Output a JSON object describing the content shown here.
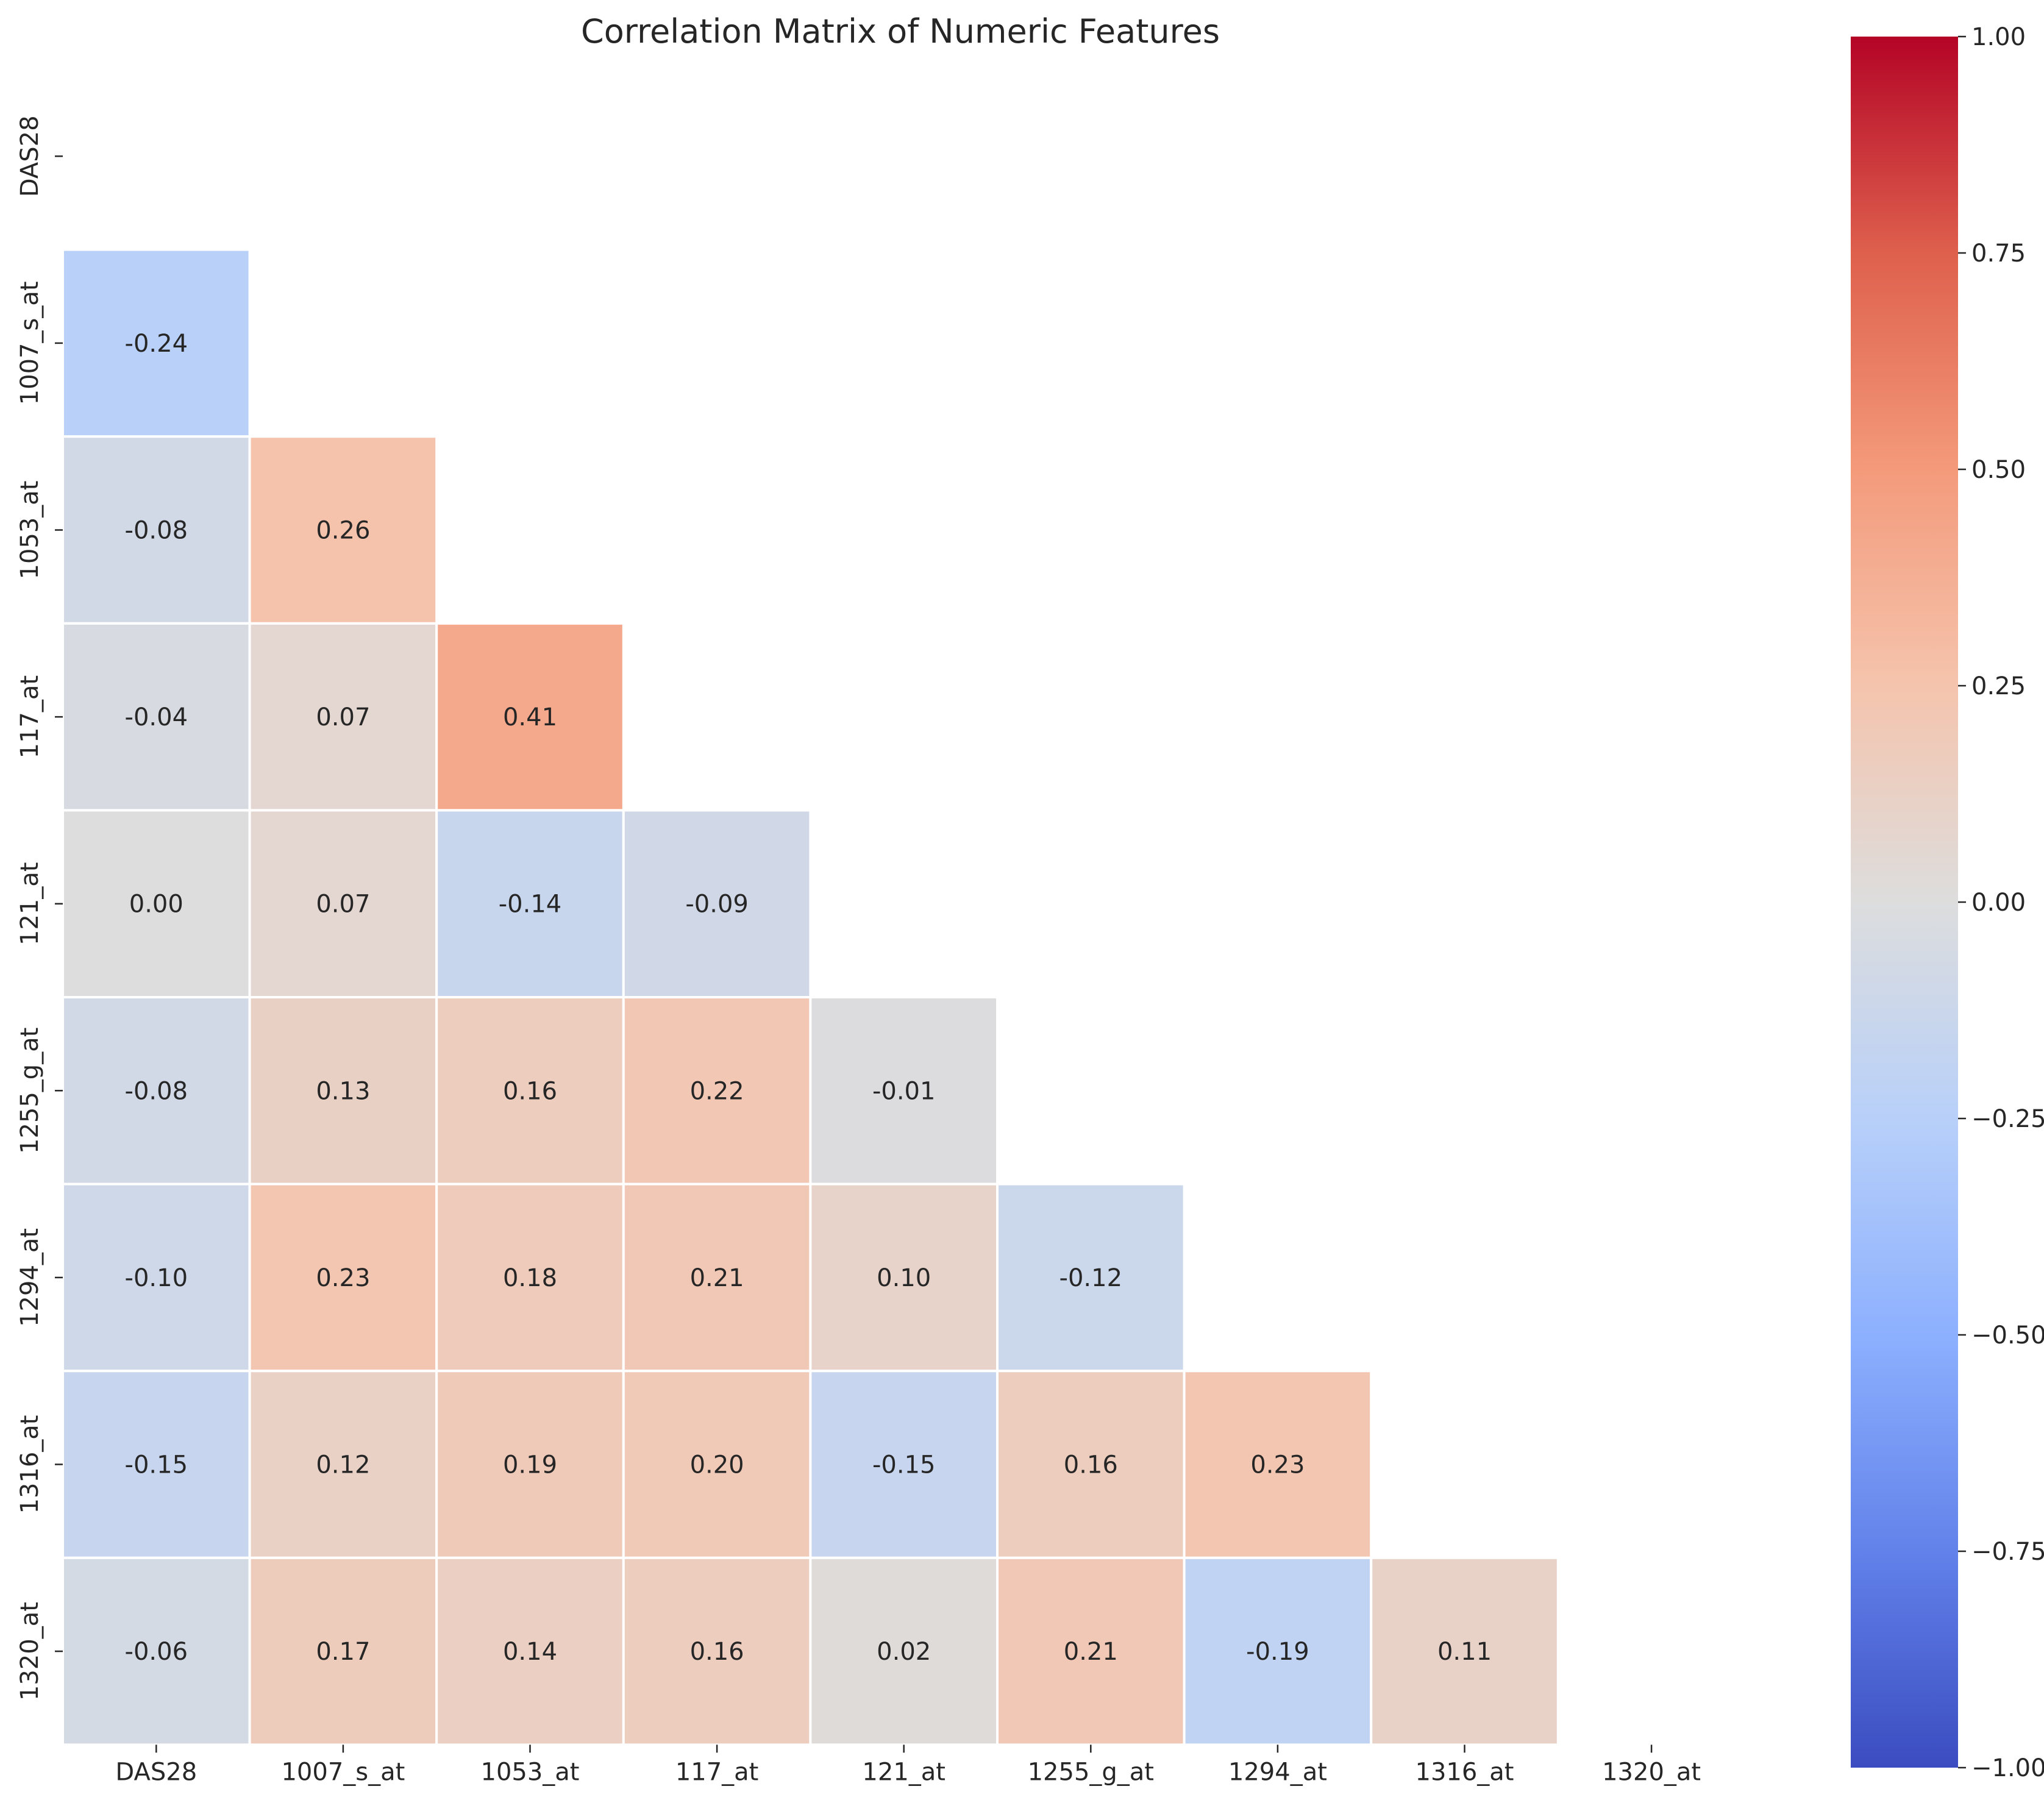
{
  "chart_data": {
    "type": "heatmap",
    "title": "Correlation Matrix of Numeric Features",
    "variables": [
      "DAS28",
      "1007_s_at",
      "1053_at",
      "117_at",
      "121_at",
      "1255_g_at",
      "1294_at",
      "1316_at",
      "1320_at"
    ],
    "mask": "upper triangle including diagonal",
    "matrix": [
      [
        null,
        null,
        null,
        null,
        null,
        null,
        null,
        null,
        null
      ],
      [
        -0.24,
        null,
        null,
        null,
        null,
        null,
        null,
        null,
        null
      ],
      [
        -0.08,
        0.26,
        null,
        null,
        null,
        null,
        null,
        null,
        null
      ],
      [
        -0.04,
        0.07,
        0.41,
        null,
        null,
        null,
        null,
        null,
        null
      ],
      [
        0.0,
        0.07,
        -0.14,
        -0.09,
        null,
        null,
        null,
        null,
        null
      ],
      [
        -0.08,
        0.13,
        0.16,
        0.22,
        -0.01,
        null,
        null,
        null,
        null
      ],
      [
        -0.1,
        0.23,
        0.18,
        0.21,
        0.1,
        -0.12,
        null,
        null,
        null
      ],
      [
        -0.15,
        0.12,
        0.19,
        0.2,
        -0.15,
        0.16,
        0.23,
        null,
        null
      ],
      [
        -0.06,
        0.17,
        0.14,
        0.16,
        0.02,
        0.21,
        -0.19,
        0.11,
        null
      ]
    ],
    "value_format": "2 decimals",
    "colormap": "coolwarm",
    "vmin": -1.0,
    "vmax": 1.0,
    "colorbar_ticks": [
      "1.00",
      "0.75",
      "0.50",
      "0.25",
      "0.00",
      "−0.25",
      "−0.50",
      "−0.75",
      "−1.00"
    ],
    "colorbar_tick_values": [
      1.0,
      0.75,
      0.5,
      0.25,
      0.0,
      -0.25,
      -0.5,
      -0.75,
      -1.0
    ],
    "cell_border_color": "#ffffff",
    "grid": false
  }
}
